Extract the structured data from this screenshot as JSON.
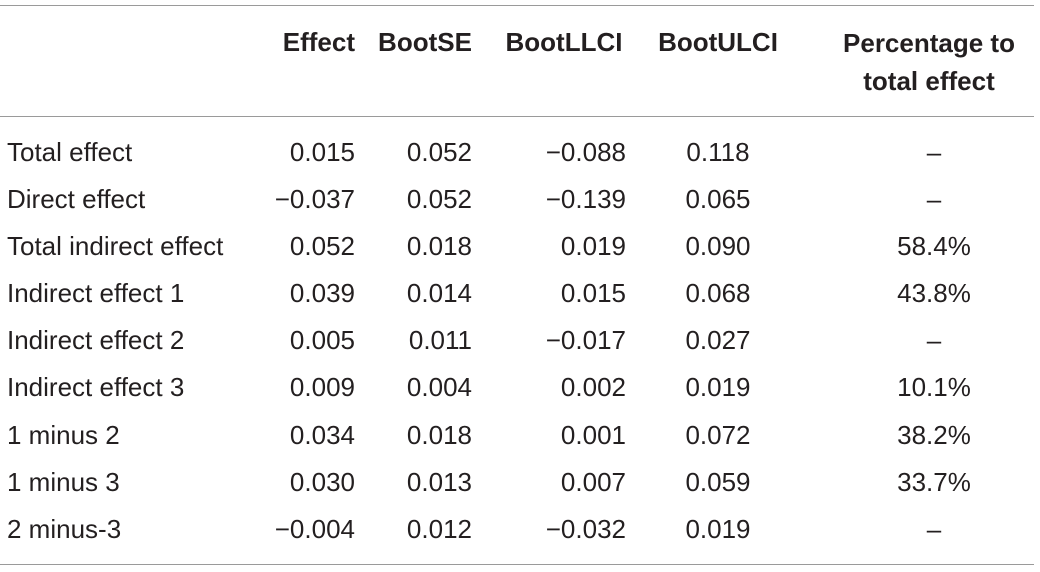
{
  "table": {
    "headers": [
      "",
      "Effect",
      "BootSE",
      "BootLLCI",
      "BootULCI",
      "Percentage to total effect"
    ],
    "header_pct_line1": "Percentage to",
    "header_pct_line2": "total effect",
    "rows": [
      [
        "Total effect",
        "0.015",
        "0.052",
        "−0.088",
        "0.118",
        "–"
      ],
      [
        "Direct effect",
        "−0.037",
        "0.052",
        "−0.139",
        "0.065",
        "–"
      ],
      [
        "Total indirect effect",
        "0.052",
        "0.018",
        "0.019",
        "0.090",
        "58.4%"
      ],
      [
        "Indirect effect 1",
        "0.039",
        "0.014",
        "0.015",
        "0.068",
        "43.8%"
      ],
      [
        "Indirect effect 2",
        "0.005",
        "0.011",
        "−0.017",
        "0.027",
        "–"
      ],
      [
        "Indirect effect 3",
        "0.009",
        "0.004",
        "0.002",
        "0.019",
        "10.1%"
      ],
      [
        "1 minus 2",
        "0.034",
        "0.018",
        "0.001",
        "0.072",
        "38.2%"
      ],
      [
        "1 minus 3",
        "0.030",
        "0.013",
        "0.007",
        "0.059",
        "33.7%"
      ],
      [
        "2 minus-3",
        "−0.004",
        "0.012",
        "−0.032",
        "0.019",
        "–"
      ]
    ]
  }
}
